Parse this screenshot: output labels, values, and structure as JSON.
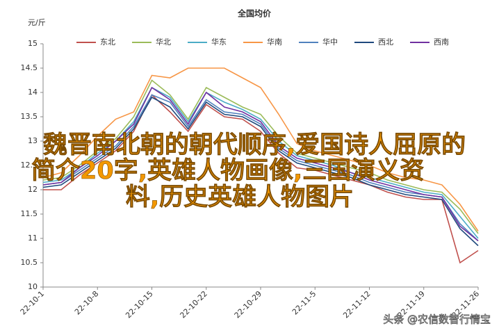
{
  "chart_data": {
    "type": "line",
    "title": "全国均价",
    "y_label": "元/斤",
    "categories": [
      "22-10-1",
      null,
      null,
      "22-10-8",
      null,
      null,
      "22-10-15",
      null,
      null,
      "22-10-22",
      null,
      null,
      "22-10-29",
      null,
      null,
      "22-11-5",
      null,
      null,
      "22-11-12",
      null,
      null,
      "22-11-19",
      null,
      null,
      "22-11-26"
    ],
    "series": [
      {
        "name": "东北",
        "color": "#c0504d",
        "values": [
          12.0,
          12.0,
          12.3,
          12.55,
          12.8,
          13.2,
          13.95,
          13.6,
          13.2,
          13.75,
          13.5,
          13.45,
          13.2,
          12.75,
          12.45,
          12.4,
          12.3,
          12.2,
          12.1,
          11.95,
          11.85,
          11.8,
          11.8,
          10.5,
          10.75
        ]
      },
      {
        "name": "华北",
        "color": "#9bbb59",
        "values": [
          12.2,
          12.25,
          12.5,
          12.8,
          13.05,
          13.5,
          14.25,
          13.95,
          13.45,
          14.1,
          13.9,
          13.7,
          13.55,
          13.1,
          12.75,
          12.65,
          12.55,
          12.45,
          12.35,
          12.2,
          12.1,
          12.0,
          11.95,
          11.6,
          11.1
        ]
      },
      {
        "name": "华东",
        "color": "#4bacc6",
        "values": [
          12.15,
          12.2,
          12.45,
          12.75,
          13.0,
          13.4,
          14.1,
          13.9,
          13.4,
          14.0,
          13.8,
          13.65,
          13.45,
          13.0,
          12.7,
          12.6,
          12.5,
          12.35,
          12.25,
          12.15,
          12.05,
          11.95,
          11.9,
          11.45,
          11.0
        ]
      },
      {
        "name": "华南",
        "color": "#f79646",
        "values": [
          12.25,
          12.35,
          12.7,
          13.1,
          13.45,
          13.6,
          14.35,
          14.3,
          14.5,
          14.5,
          14.5,
          14.3,
          14.1,
          13.55,
          12.95,
          12.8,
          12.7,
          12.6,
          12.5,
          12.35,
          12.25,
          12.2,
          12.1,
          11.7,
          11.15
        ]
      },
      {
        "name": "华中",
        "color": "#4f81bd",
        "values": [
          12.1,
          12.15,
          12.4,
          12.65,
          12.9,
          13.3,
          13.95,
          13.8,
          13.3,
          13.85,
          13.6,
          13.55,
          13.35,
          12.85,
          12.6,
          12.5,
          12.4,
          12.3,
          12.15,
          12.05,
          11.95,
          11.9,
          11.85,
          11.3,
          10.95
        ]
      },
      {
        "name": "西北",
        "color": "#1f497d",
        "values": [
          12.05,
          12.1,
          12.35,
          12.6,
          12.85,
          13.25,
          13.9,
          13.7,
          13.25,
          13.8,
          13.55,
          13.5,
          13.3,
          12.8,
          12.55,
          12.45,
          12.35,
          12.25,
          12.1,
          12.0,
          11.9,
          11.85,
          11.8,
          11.2,
          10.85
        ]
      },
      {
        "name": "西南",
        "color": "#7030a0",
        "values": [
          12.1,
          12.15,
          12.45,
          12.7,
          13.0,
          13.35,
          14.1,
          13.85,
          13.35,
          14.0,
          13.7,
          13.6,
          13.4,
          12.9,
          12.65,
          12.55,
          12.45,
          12.35,
          12.2,
          12.1,
          12.0,
          11.9,
          11.85,
          11.25,
          10.95
        ]
      }
    ],
    "ylim": [
      10,
      15
    ],
    "yticks": [
      10,
      10.5,
      11,
      11.5,
      12,
      12.5,
      13,
      13.5,
      14,
      14.5,
      15
    ],
    "grid": false
  },
  "overlay": {
    "lines": [
      "魏晋南北朝的朝代顺序,爱国诗人屈原的",
      "简介20字,英雄人物画像,三国演义资",
      "料,历史英雄人物图片"
    ]
  },
  "watermark": "头条 @农信数智行情宝"
}
